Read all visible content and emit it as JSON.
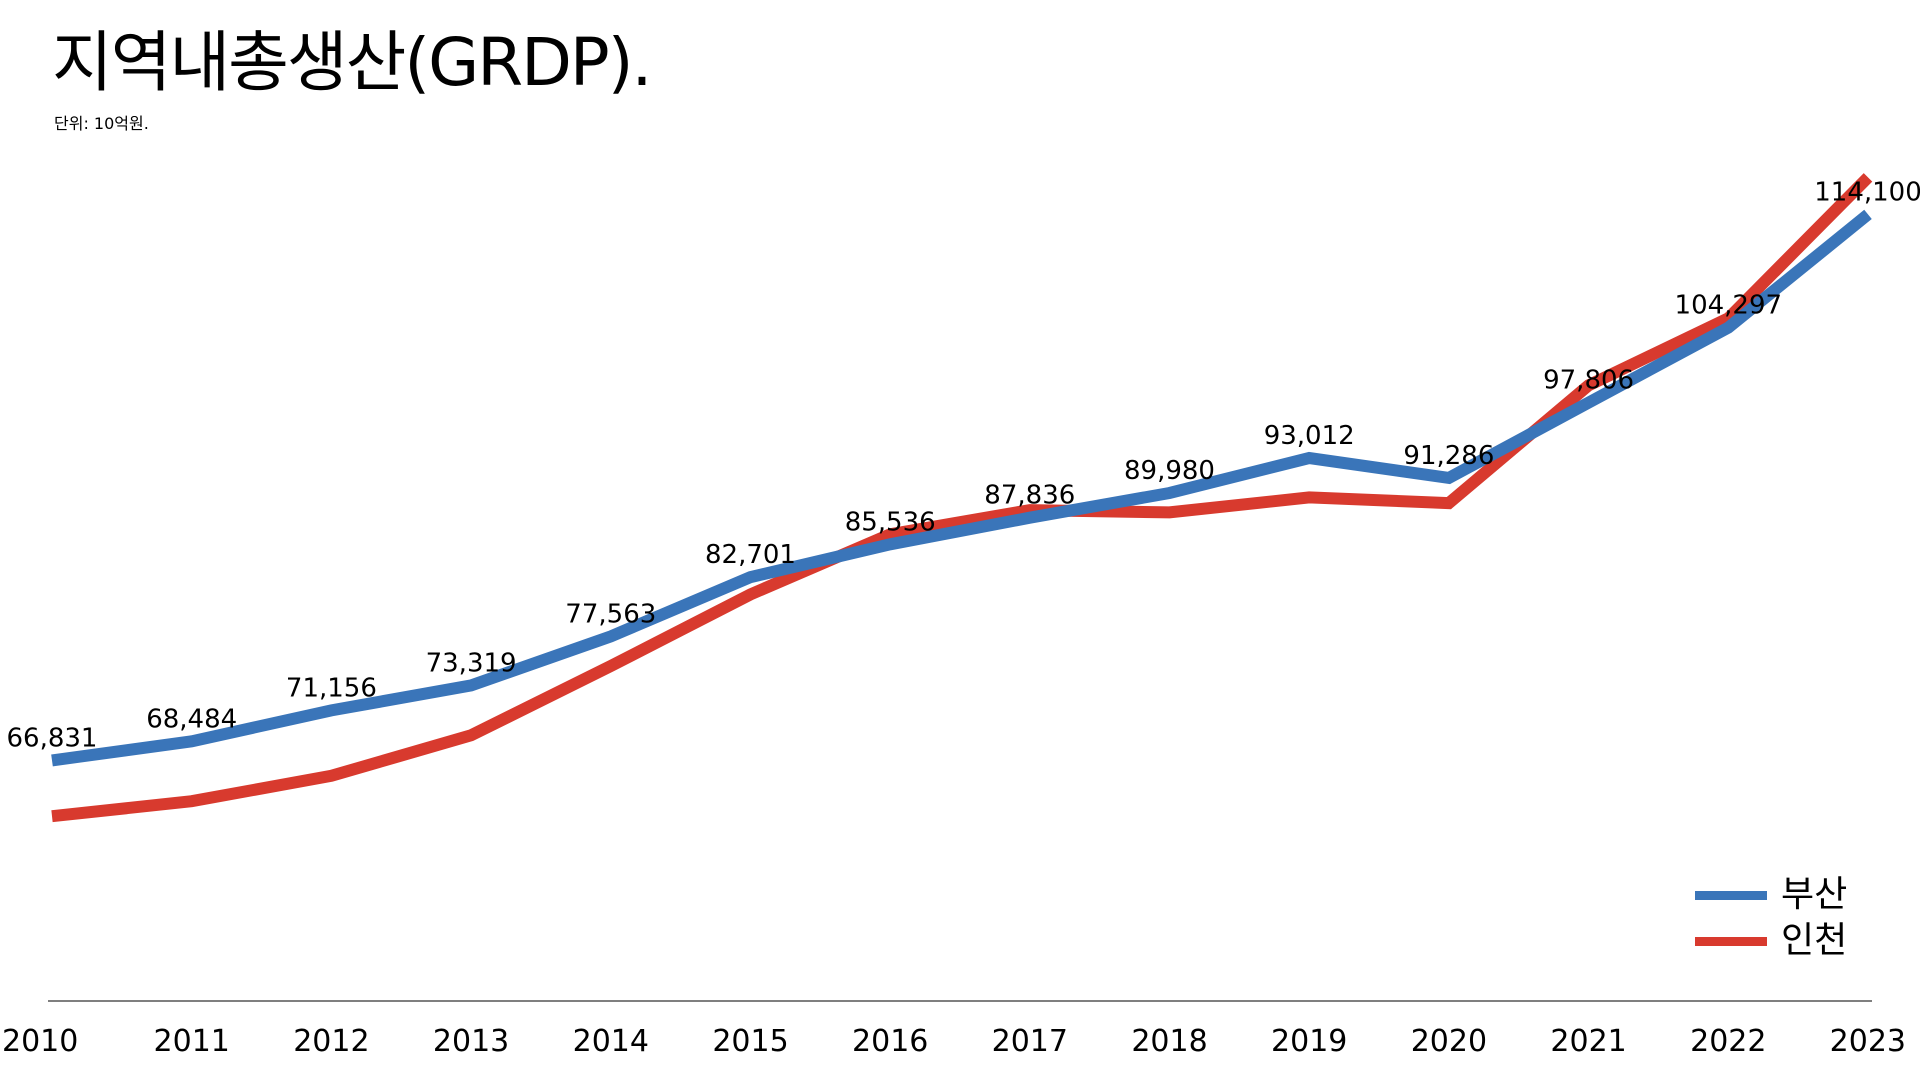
{
  "title": "지역내총생산(GRDP).",
  "subtitle": "단위: 10억원.",
  "chart_data": {
    "type": "line",
    "title": "지역내총생산(GRDP).",
    "subtitle": "단위: 10억원.",
    "xlabel": "",
    "ylabel": "",
    "x": [
      "2010",
      "2011",
      "2012",
      "2013",
      "2014",
      "2015",
      "2016",
      "2017",
      "2018",
      "2019",
      "2020",
      "2021",
      "2022",
      "2023"
    ],
    "ylim": [
      46000,
      124000
    ],
    "grid": false,
    "legend_position": "bottom-right",
    "series": [
      {
        "name": "부산",
        "color": "#3A75B9",
        "values": [
          66831,
          68484,
          71156,
          73319,
          77563,
          82701,
          85536,
          87836,
          89980,
          93012,
          91286,
          97806,
          104297,
          114100
        ],
        "labels": [
          "66,831",
          "68,484",
          "71,156",
          "73,319",
          "77,563",
          "82,701",
          "85,536",
          "87,836",
          "89,980",
          "93,012",
          "91,286",
          "97,806",
          "104,297",
          "114,100"
        ]
      },
      {
        "name": "인천",
        "color": "#D83A2E",
        "values": [
          62000,
          63300,
          65500,
          69000,
          75000,
          81200,
          86400,
          88500,
          88300,
          89600,
          89100,
          99300,
          105100,
          117300
        ]
      }
    ]
  }
}
